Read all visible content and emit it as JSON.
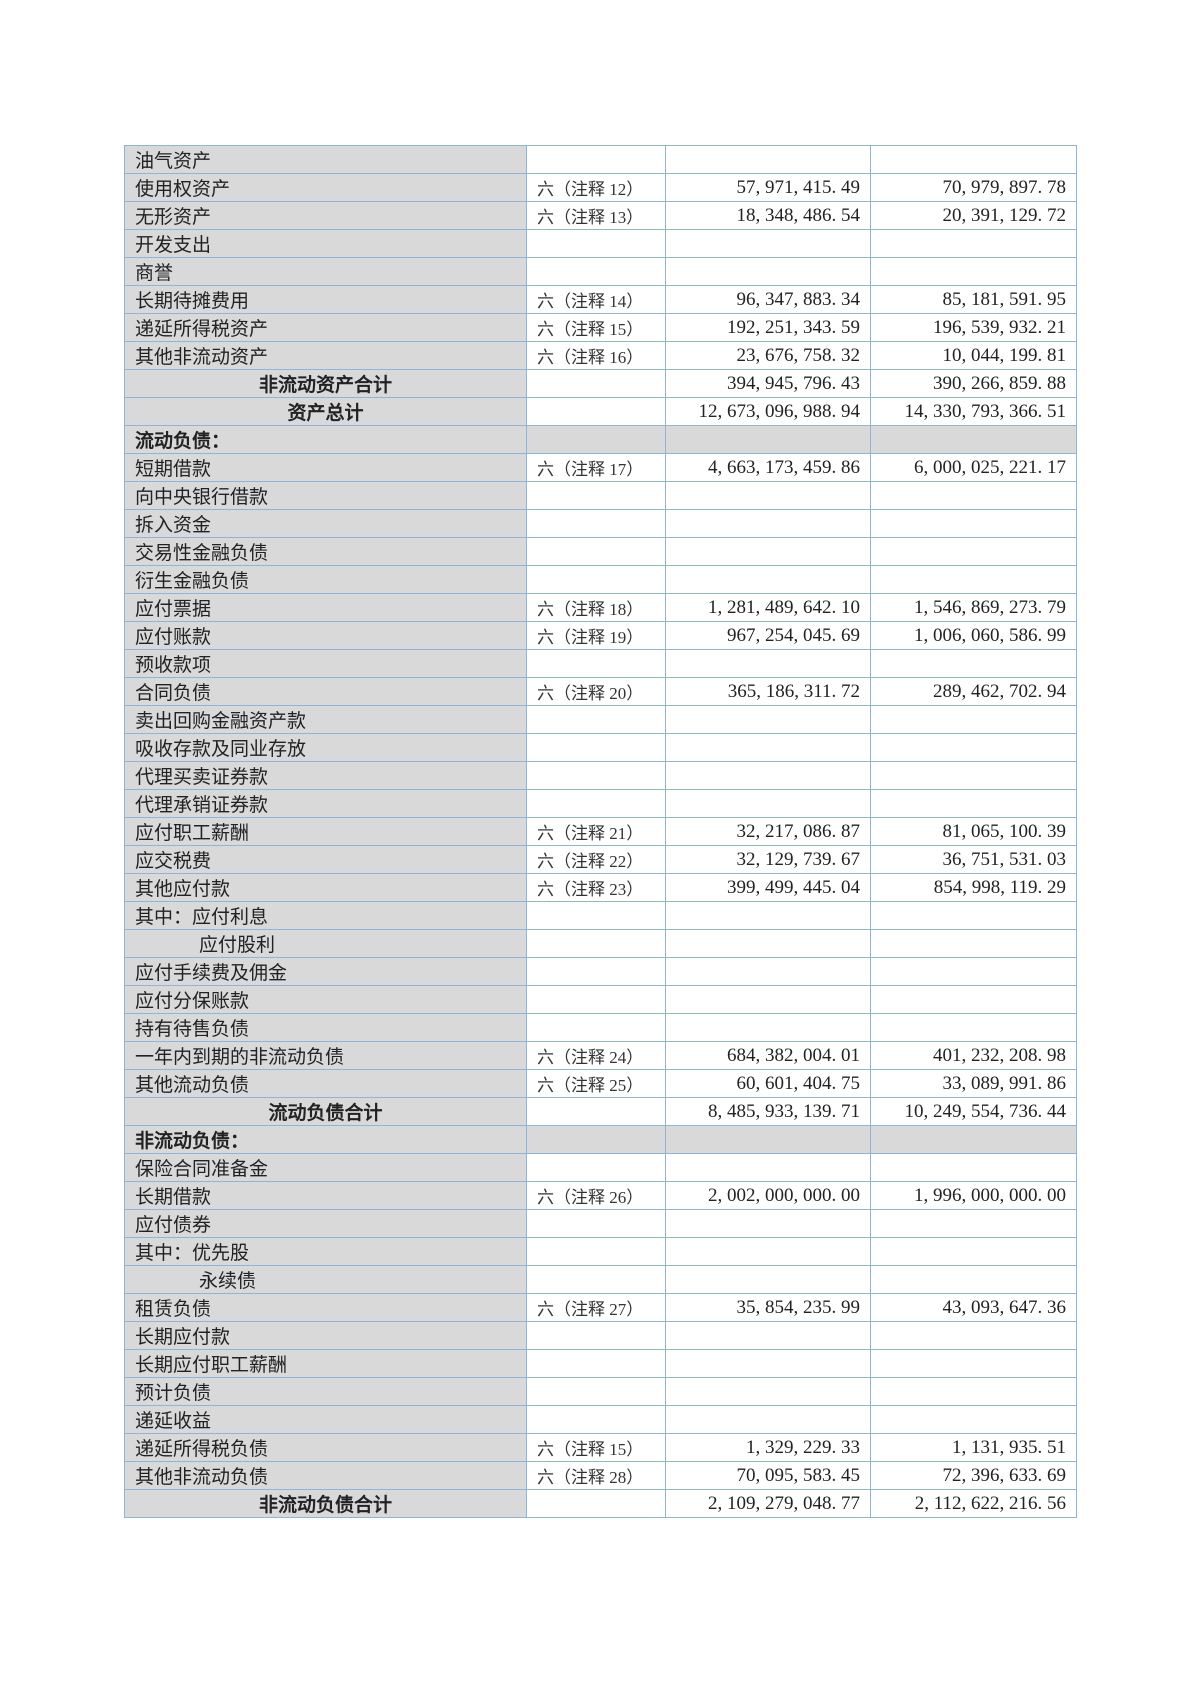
{
  "rows": [
    {
      "label": "油气资产",
      "note": "",
      "current": "",
      "prior": "",
      "type": "normal"
    },
    {
      "label": "使用权资产",
      "note": "六（注释 12）",
      "current": "57, 971, 415. 49",
      "prior": "70, 979, 897. 78",
      "type": "normal"
    },
    {
      "label": "无形资产",
      "note": "六（注释 13）",
      "current": "18, 348, 486. 54",
      "prior": "20, 391, 129. 72",
      "type": "normal"
    },
    {
      "label": "开发支出",
      "note": "",
      "current": "",
      "prior": "",
      "type": "normal"
    },
    {
      "label": "商誉",
      "note": "",
      "current": "",
      "prior": "",
      "type": "normal"
    },
    {
      "label": "长期待摊费用",
      "note": "六（注释 14）",
      "current": "96, 347, 883. 34",
      "prior": "85, 181, 591. 95",
      "type": "normal"
    },
    {
      "label": "递延所得税资产",
      "note": "六（注释 15）",
      "current": "192, 251, 343. 59",
      "prior": "196, 539, 932. 21",
      "type": "normal"
    },
    {
      "label": "其他非流动资产",
      "note": "六（注释 16）",
      "current": "23, 676, 758. 32",
      "prior": "10, 044, 199. 81",
      "type": "normal"
    },
    {
      "label": "非流动资产合计",
      "note": "",
      "current": "394, 945, 796. 43",
      "prior": "390, 266, 859. 88",
      "type": "total"
    },
    {
      "label": "资产总计",
      "note": "",
      "current": "12, 673, 096, 988. 94",
      "prior": "14, 330, 793, 366. 51",
      "type": "total"
    },
    {
      "label": "流动负债：",
      "note": "",
      "current": "",
      "prior": "",
      "type": "section"
    },
    {
      "label": "短期借款",
      "note": "六（注释 17）",
      "current": "4, 663, 173, 459. 86",
      "prior": "6, 000, 025, 221. 17",
      "type": "normal"
    },
    {
      "label": "向中央银行借款",
      "note": "",
      "current": "",
      "prior": "",
      "type": "normal"
    },
    {
      "label": "拆入资金",
      "note": "",
      "current": "",
      "prior": "",
      "type": "normal"
    },
    {
      "label": "交易性金融负债",
      "note": "",
      "current": "",
      "prior": "",
      "type": "normal"
    },
    {
      "label": "衍生金融负债",
      "note": "",
      "current": "",
      "prior": "",
      "type": "normal"
    },
    {
      "label": "应付票据",
      "note": "六（注释 18）",
      "current": "1, 281, 489, 642. 10",
      "prior": "1, 546, 869, 273. 79",
      "type": "normal"
    },
    {
      "label": "应付账款",
      "note": "六（注释 19）",
      "current": "967, 254, 045. 69",
      "prior": "1, 006, 060, 586. 99",
      "type": "normal"
    },
    {
      "label": "预收款项",
      "note": "",
      "current": "",
      "prior": "",
      "type": "normal"
    },
    {
      "label": "合同负债",
      "note": "六（注释 20）",
      "current": "365, 186, 311. 72",
      "prior": "289, 462, 702. 94",
      "type": "normal"
    },
    {
      "label": "卖出回购金融资产款",
      "note": "",
      "current": "",
      "prior": "",
      "type": "normal"
    },
    {
      "label": "吸收存款及同业存放",
      "note": "",
      "current": "",
      "prior": "",
      "type": "normal"
    },
    {
      "label": "代理买卖证券款",
      "note": "",
      "current": "",
      "prior": "",
      "type": "normal"
    },
    {
      "label": "代理承销证券款",
      "note": "",
      "current": "",
      "prior": "",
      "type": "normal"
    },
    {
      "label": "应付职工薪酬",
      "note": "六（注释 21）",
      "current": "32, 217, 086. 87",
      "prior": "81, 065, 100. 39",
      "type": "normal"
    },
    {
      "label": "应交税费",
      "note": "六（注释 22）",
      "current": "32, 129, 739. 67",
      "prior": "36, 751, 531. 03",
      "type": "normal"
    },
    {
      "label": "其他应付款",
      "note": "六（注释 23）",
      "current": "399, 499, 445. 04",
      "prior": "854, 998, 119. 29",
      "type": "normal"
    },
    {
      "label": "其中：应付利息",
      "note": "",
      "current": "",
      "prior": "",
      "type": "normal"
    },
    {
      "label": "应付股利",
      "note": "",
      "current": "",
      "prior": "",
      "type": "indent"
    },
    {
      "label": "应付手续费及佣金",
      "note": "",
      "current": "",
      "prior": "",
      "type": "normal"
    },
    {
      "label": "应付分保账款",
      "note": "",
      "current": "",
      "prior": "",
      "type": "normal"
    },
    {
      "label": "持有待售负债",
      "note": "",
      "current": "",
      "prior": "",
      "type": "normal"
    },
    {
      "label": "一年内到期的非流动负债",
      "note": "六（注释 24）",
      "current": "684, 382, 004. 01",
      "prior": "401, 232, 208. 98",
      "type": "normal"
    },
    {
      "label": "其他流动负债",
      "note": "六（注释 25）",
      "current": "60, 601, 404. 75",
      "prior": "33, 089, 991. 86",
      "type": "normal"
    },
    {
      "label": "流动负债合计",
      "note": "",
      "current": "8, 485, 933, 139. 71",
      "prior": "10, 249, 554, 736. 44",
      "type": "total"
    },
    {
      "label": "非流动负债：",
      "note": "",
      "current": "",
      "prior": "",
      "type": "section"
    },
    {
      "label": "保险合同准备金",
      "note": "",
      "current": "",
      "prior": "",
      "type": "normal"
    },
    {
      "label": "长期借款",
      "note": "六（注释 26）",
      "current": "2, 002, 000, 000. 00",
      "prior": "1, 996, 000, 000. 00",
      "type": "normal"
    },
    {
      "label": "应付债券",
      "note": "",
      "current": "",
      "prior": "",
      "type": "normal"
    },
    {
      "label": "其中：优先股",
      "note": "",
      "current": "",
      "prior": "",
      "type": "normal"
    },
    {
      "label": "永续债",
      "note": "",
      "current": "",
      "prior": "",
      "type": "indent"
    },
    {
      "label": "租赁负债",
      "note": "六（注释 27）",
      "current": "35, 854, 235. 99",
      "prior": "43, 093, 647. 36",
      "type": "normal"
    },
    {
      "label": "长期应付款",
      "note": "",
      "current": "",
      "prior": "",
      "type": "normal"
    },
    {
      "label": "长期应付职工薪酬",
      "note": "",
      "current": "",
      "prior": "",
      "type": "normal"
    },
    {
      "label": "预计负债",
      "note": "",
      "current": "",
      "prior": "",
      "type": "normal"
    },
    {
      "label": "递延收益",
      "note": "",
      "current": "",
      "prior": "",
      "type": "normal"
    },
    {
      "label": "递延所得税负债",
      "note": "六（注释 15）",
      "current": "1, 329, 229. 33",
      "prior": "1, 131, 935. 51",
      "type": "normal"
    },
    {
      "label": "其他非流动负债",
      "note": "六（注释 28）",
      "current": "70, 095, 583. 45",
      "prior": "72, 396, 633. 69",
      "type": "normal"
    },
    {
      "label": "非流动负债合计",
      "note": "",
      "current": "2, 109, 279, 048. 77",
      "prior": "2, 112, 622, 216. 56",
      "type": "total"
    }
  ]
}
